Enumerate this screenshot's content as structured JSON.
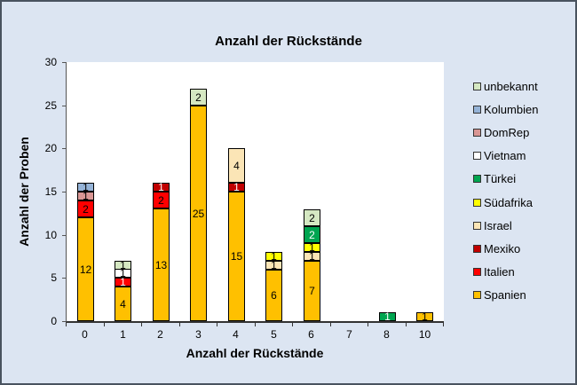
{
  "window": {
    "background": "#DCE5F2",
    "border_color": "#49535F",
    "plot_background": "#FFFFFF",
    "axis_color": "#333333",
    "text_color": "#000000"
  },
  "chart_data": {
    "type": "bar",
    "stacked": true,
    "title": "Anzahl der Rückstände",
    "xlabel": "Anzahl der Rückstände",
    "ylabel": "Anzahl der Proben",
    "categories": [
      "0",
      "1",
      "2",
      "3",
      "4",
      "5",
      "6",
      "7",
      "8",
      "10"
    ],
    "ylim": [
      0,
      30
    ],
    "y_ticks": [
      0,
      5,
      10,
      15,
      20,
      25,
      30
    ],
    "grid": false,
    "legend_position": "right",
    "legend_order": "reverse-of-stacking (unbekannt top, Spanien bottom)",
    "data_labels": "value shown on every nonzero segment",
    "series": [
      {
        "name": "Spanien",
        "color": "#FFC000",
        "label_color": "#000000",
        "values": [
          12,
          4,
          13,
          25,
          15,
          6,
          7,
          0,
          0,
          1
        ]
      },
      {
        "name": "Italien",
        "color": "#FF0000",
        "label_color": "#000000",
        "label_color_overrides": {
          "1": "#FFFFFF"
        },
        "values": [
          2,
          1,
          2,
          0,
          0,
          0,
          0,
          0,
          0,
          0
        ]
      },
      {
        "name": "Mexiko",
        "color": "#C00000",
        "label_color": "#FFFFFF",
        "values": [
          0,
          0,
          1,
          0,
          1,
          0,
          0,
          0,
          0,
          0
        ]
      },
      {
        "name": "Israel",
        "color": "#FBE5B6",
        "label_color": "#000000",
        "values": [
          0,
          0,
          0,
          0,
          4,
          1,
          1,
          0,
          0,
          0
        ]
      },
      {
        "name": "Südafrika",
        "color": "#FFFF00",
        "label_color": "#000000",
        "values": [
          0,
          0,
          0,
          0,
          0,
          1,
          1,
          0,
          0,
          0
        ]
      },
      {
        "name": "Türkei",
        "color": "#00A550",
        "label_color": "#FFFFFF",
        "values": [
          0,
          0,
          0,
          0,
          0,
          0,
          2,
          0,
          1,
          0
        ]
      },
      {
        "name": "Vietnam",
        "color": "#FFFFFF",
        "label_color": "#000000",
        "values": [
          0,
          1,
          0,
          0,
          0,
          0,
          0,
          0,
          0,
          0
        ]
      },
      {
        "name": "DomRep",
        "color": "#D99694",
        "label_color": "#000000",
        "values": [
          1,
          0,
          0,
          0,
          0,
          0,
          0,
          0,
          0,
          0
        ]
      },
      {
        "name": "Kolumbien",
        "color": "#95B3D7",
        "label_color": "#000000",
        "values": [
          1,
          0,
          0,
          0,
          0,
          0,
          0,
          0,
          0,
          0
        ]
      },
      {
        "name": "unbekannt",
        "color": "#D5E8C2",
        "label_color": "#000000",
        "values": [
          0,
          1,
          0,
          2,
          0,
          0,
          2,
          0,
          0,
          0
        ]
      }
    ]
  }
}
